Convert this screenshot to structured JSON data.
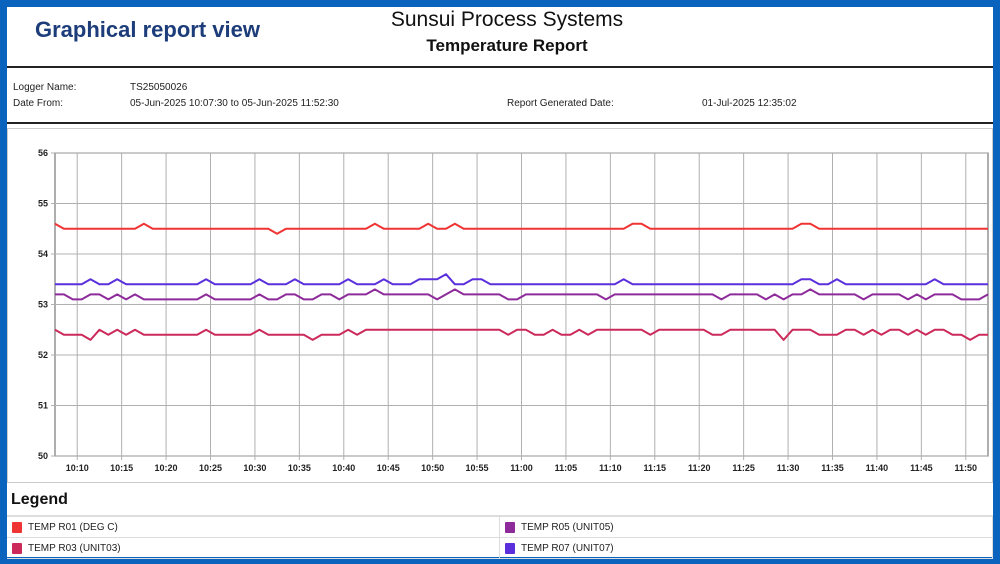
{
  "view_title": "Graphical report view",
  "header": {
    "company": "Sunsui Process Systems",
    "report_title": "Temperature Report"
  },
  "info": {
    "logger_label": "Logger Name:",
    "logger_value": "TS25050026",
    "date_label": "Date From:",
    "date_value": "05-Jun-2025 10:07:30 to 05-Jun-2025 11:52:30",
    "generated_label": "Report Generated Date:",
    "generated_value": "01-Jul-2025 12:35:02"
  },
  "legend": {
    "title": "Legend",
    "items": [
      {
        "label": "TEMP R01 (DEG C)",
        "color": "#f03333"
      },
      {
        "label": "TEMP R05 (UNIT05)",
        "color": "#8e2b9a"
      },
      {
        "label": "TEMP R03 (UNIT03)",
        "color": "#cc2a5a"
      },
      {
        "label": "TEMP R07 (UNIT07)",
        "color": "#5b30dc"
      }
    ]
  },
  "chart_data": {
    "type": "line",
    "x_range": [
      "10:07:30",
      "11:52:30"
    ],
    "sample_interval": "1 min",
    "x_ticks": [
      "10:10",
      "10:15",
      "10:20",
      "10:25",
      "10:30",
      "10:35",
      "10:40",
      "10:45",
      "10:50",
      "10:55",
      "11:00",
      "11:05",
      "11:10",
      "11:15",
      "11:20",
      "11:25",
      "11:30",
      "11:35",
      "11:40",
      "11:45",
      "11:50"
    ],
    "y_ticks": [
      "50",
      "51",
      "52",
      "53",
      "54",
      "55",
      "56"
    ],
    "ylim": [
      50,
      56
    ],
    "grid": true,
    "legend_position": "bottom",
    "series": [
      {
        "name": "TEMP R01 (DEG C)",
        "color": "#f03333",
        "values": [
          54.6,
          54.5,
          54.5,
          54.5,
          54.5,
          54.5,
          54.5,
          54.5,
          54.5,
          54.5,
          54.6,
          54.5,
          54.5,
          54.5,
          54.5,
          54.5,
          54.5,
          54.5,
          54.5,
          54.5,
          54.5,
          54.5,
          54.5,
          54.5,
          54.5,
          54.4,
          54.5,
          54.5,
          54.5,
          54.5,
          54.5,
          54.5,
          54.5,
          54.5,
          54.5,
          54.5,
          54.6,
          54.5,
          54.5,
          54.5,
          54.5,
          54.5,
          54.6,
          54.5,
          54.5,
          54.6,
          54.5,
          54.5,
          54.5,
          54.5,
          54.5,
          54.5,
          54.5,
          54.5,
          54.5,
          54.5,
          54.5,
          54.5,
          54.5,
          54.5,
          54.5,
          54.5,
          54.5,
          54.5,
          54.5,
          54.6,
          54.6,
          54.5,
          54.5,
          54.5,
          54.5,
          54.5,
          54.5,
          54.5,
          54.5,
          54.5,
          54.5,
          54.5,
          54.5,
          54.5,
          54.5,
          54.5,
          54.5,
          54.5,
          54.6,
          54.6,
          54.5,
          54.5,
          54.5,
          54.5,
          54.5,
          54.5,
          54.5,
          54.5,
          54.5,
          54.5,
          54.5,
          54.5,
          54.5,
          54.5,
          54.5,
          54.5,
          54.5,
          54.5,
          54.5,
          54.5
        ]
      },
      {
        "name": "TEMP R07 (UNIT07)",
        "color": "#5b30dc",
        "values": [
          53.4,
          53.4,
          53.4,
          53.4,
          53.5,
          53.4,
          53.4,
          53.5,
          53.4,
          53.4,
          53.4,
          53.4,
          53.4,
          53.4,
          53.4,
          53.4,
          53.4,
          53.5,
          53.4,
          53.4,
          53.4,
          53.4,
          53.4,
          53.5,
          53.4,
          53.4,
          53.4,
          53.5,
          53.4,
          53.4,
          53.4,
          53.4,
          53.4,
          53.5,
          53.4,
          53.4,
          53.4,
          53.5,
          53.4,
          53.4,
          53.4,
          53.5,
          53.5,
          53.5,
          53.6,
          53.4,
          53.4,
          53.5,
          53.5,
          53.4,
          53.4,
          53.4,
          53.4,
          53.4,
          53.4,
          53.4,
          53.4,
          53.4,
          53.4,
          53.4,
          53.4,
          53.4,
          53.4,
          53.4,
          53.5,
          53.4,
          53.4,
          53.4,
          53.4,
          53.4,
          53.4,
          53.4,
          53.4,
          53.4,
          53.4,
          53.4,
          53.4,
          53.4,
          53.4,
          53.4,
          53.4,
          53.4,
          53.4,
          53.4,
          53.5,
          53.5,
          53.4,
          53.4,
          53.5,
          53.4,
          53.4,
          53.4,
          53.4,
          53.4,
          53.4,
          53.4,
          53.4,
          53.4,
          53.4,
          53.5,
          53.4,
          53.4,
          53.4,
          53.4,
          53.4,
          53.4
        ]
      },
      {
        "name": "TEMP R05 (UNIT05)",
        "color": "#8e2b9a",
        "values": [
          53.2,
          53.2,
          53.1,
          53.1,
          53.2,
          53.2,
          53.1,
          53.2,
          53.1,
          53.2,
          53.1,
          53.1,
          53.1,
          53.1,
          53.1,
          53.1,
          53.1,
          53.2,
          53.1,
          53.1,
          53.1,
          53.1,
          53.1,
          53.2,
          53.1,
          53.1,
          53.2,
          53.2,
          53.1,
          53.1,
          53.2,
          53.2,
          53.1,
          53.2,
          53.2,
          53.2,
          53.3,
          53.2,
          53.2,
          53.2,
          53.2,
          53.2,
          53.2,
          53.1,
          53.2,
          53.3,
          53.2,
          53.2,
          53.2,
          53.2,
          53.2,
          53.1,
          53.1,
          53.2,
          53.2,
          53.2,
          53.2,
          53.2,
          53.2,
          53.2,
          53.2,
          53.2,
          53.1,
          53.2,
          53.2,
          53.2,
          53.2,
          53.2,
          53.2,
          53.2,
          53.2,
          53.2,
          53.2,
          53.2,
          53.2,
          53.1,
          53.2,
          53.2,
          53.2,
          53.2,
          53.1,
          53.2,
          53.1,
          53.2,
          53.2,
          53.3,
          53.2,
          53.2,
          53.2,
          53.2,
          53.2,
          53.1,
          53.2,
          53.2,
          53.2,
          53.2,
          53.1,
          53.2,
          53.1,
          53.2,
          53.2,
          53.2,
          53.1,
          53.1,
          53.1,
          53.2
        ]
      },
      {
        "name": "TEMP R03 (UNIT03)",
        "color": "#cc2a5a",
        "values": [
          52.5,
          52.4,
          52.4,
          52.4,
          52.3,
          52.5,
          52.4,
          52.5,
          52.4,
          52.5,
          52.4,
          52.4,
          52.4,
          52.4,
          52.4,
          52.4,
          52.4,
          52.5,
          52.4,
          52.4,
          52.4,
          52.4,
          52.4,
          52.5,
          52.4,
          52.4,
          52.4,
          52.4,
          52.4,
          52.3,
          52.4,
          52.4,
          52.4,
          52.5,
          52.4,
          52.5,
          52.5,
          52.5,
          52.5,
          52.5,
          52.5,
          52.5,
          52.5,
          52.5,
          52.5,
          52.5,
          52.5,
          52.5,
          52.5,
          52.5,
          52.5,
          52.4,
          52.5,
          52.5,
          52.4,
          52.4,
          52.5,
          52.4,
          52.4,
          52.5,
          52.4,
          52.5,
          52.5,
          52.5,
          52.5,
          52.5,
          52.5,
          52.4,
          52.5,
          52.5,
          52.5,
          52.5,
          52.5,
          52.5,
          52.4,
          52.4,
          52.5,
          52.5,
          52.5,
          52.5,
          52.5,
          52.5,
          52.3,
          52.5,
          52.5,
          52.5,
          52.4,
          52.4,
          52.4,
          52.5,
          52.5,
          52.4,
          52.5,
          52.4,
          52.5,
          52.5,
          52.4,
          52.5,
          52.4,
          52.5,
          52.5,
          52.4,
          52.4,
          52.3,
          52.4,
          52.4
        ]
      }
    ]
  }
}
